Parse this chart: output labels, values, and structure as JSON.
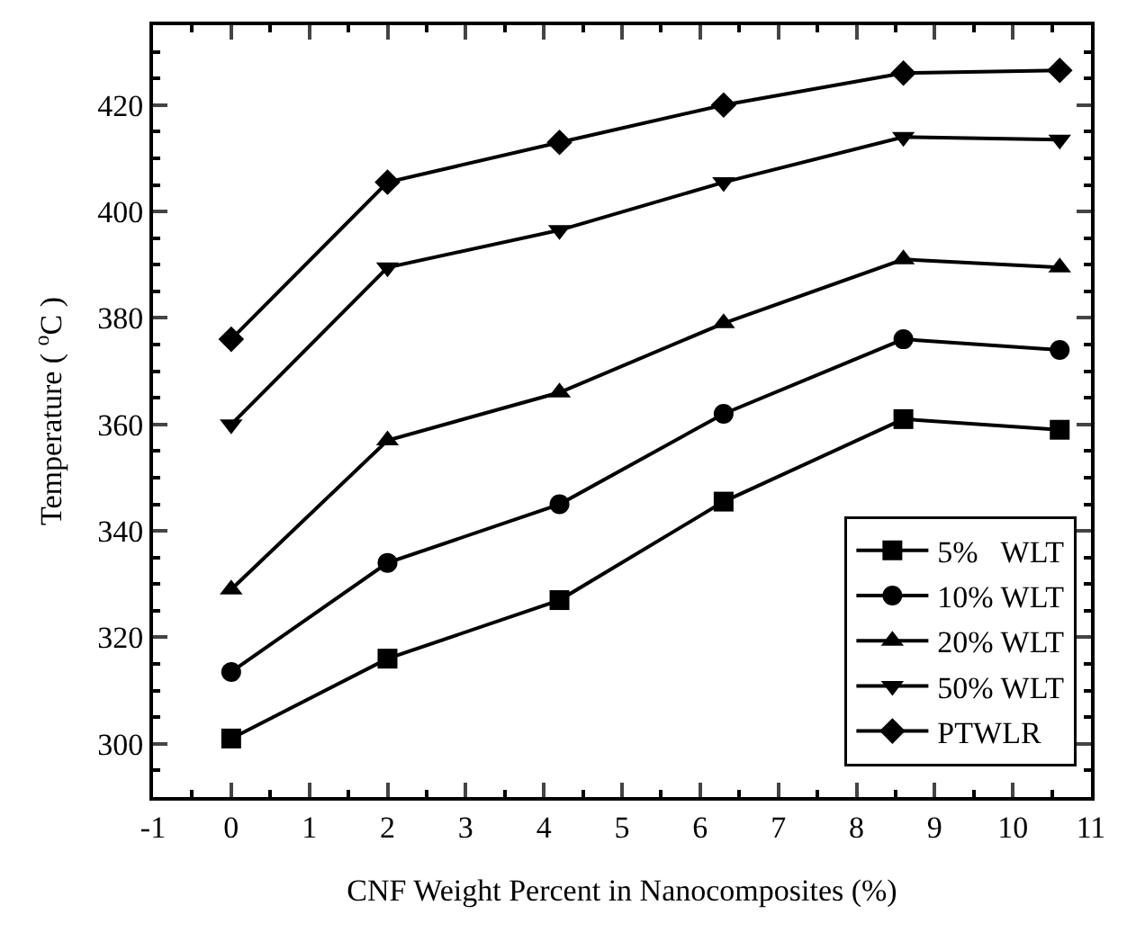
{
  "chart_data": {
    "type": "line",
    "xlabel": "CNF Weight Percent in Nanocomposites (%)",
    "ylabel": "Temperature ( $^{o}$C )",
    "x": [
      0,
      2,
      4.2,
      6.3,
      8.6,
      10.6
    ],
    "series": [
      {
        "name": "5%   WLT",
        "color": "#000000",
        "marker": "square",
        "values": [
          301,
          316,
          327,
          345.5,
          361,
          359
        ]
      },
      {
        "name": "10% WLT",
        "color": "#000000",
        "marker": "circle",
        "values": [
          313.5,
          334,
          345,
          362,
          376,
          374
        ]
      },
      {
        "name": "20% WLT",
        "color": "#000000",
        "marker": "triangle",
        "values": [
          329,
          357,
          366,
          379,
          391,
          389.5
        ]
      },
      {
        "name": "50% WLT",
        "color": "#000000",
        "marker": "triangle-down",
        "values": [
          360,
          389.5,
          396.5,
          405.5,
          414,
          413.5
        ]
      },
      {
        "name": "PTWLR",
        "color": "#000000",
        "marker": "diamond",
        "values": [
          376,
          405.5,
          413,
          420,
          426,
          426.5
        ]
      }
    ],
    "xlim": [
      -1,
      11
    ],
    "xticks": [
      -1,
      0,
      1,
      2,
      3,
      4,
      5,
      6,
      7,
      8,
      9,
      10,
      11
    ],
    "ylim": [
      290,
      435
    ],
    "yticks": [
      300,
      320,
      340,
      360,
      380,
      400,
      420
    ],
    "legend": "bottom right",
    "line_style": "solid"
  }
}
